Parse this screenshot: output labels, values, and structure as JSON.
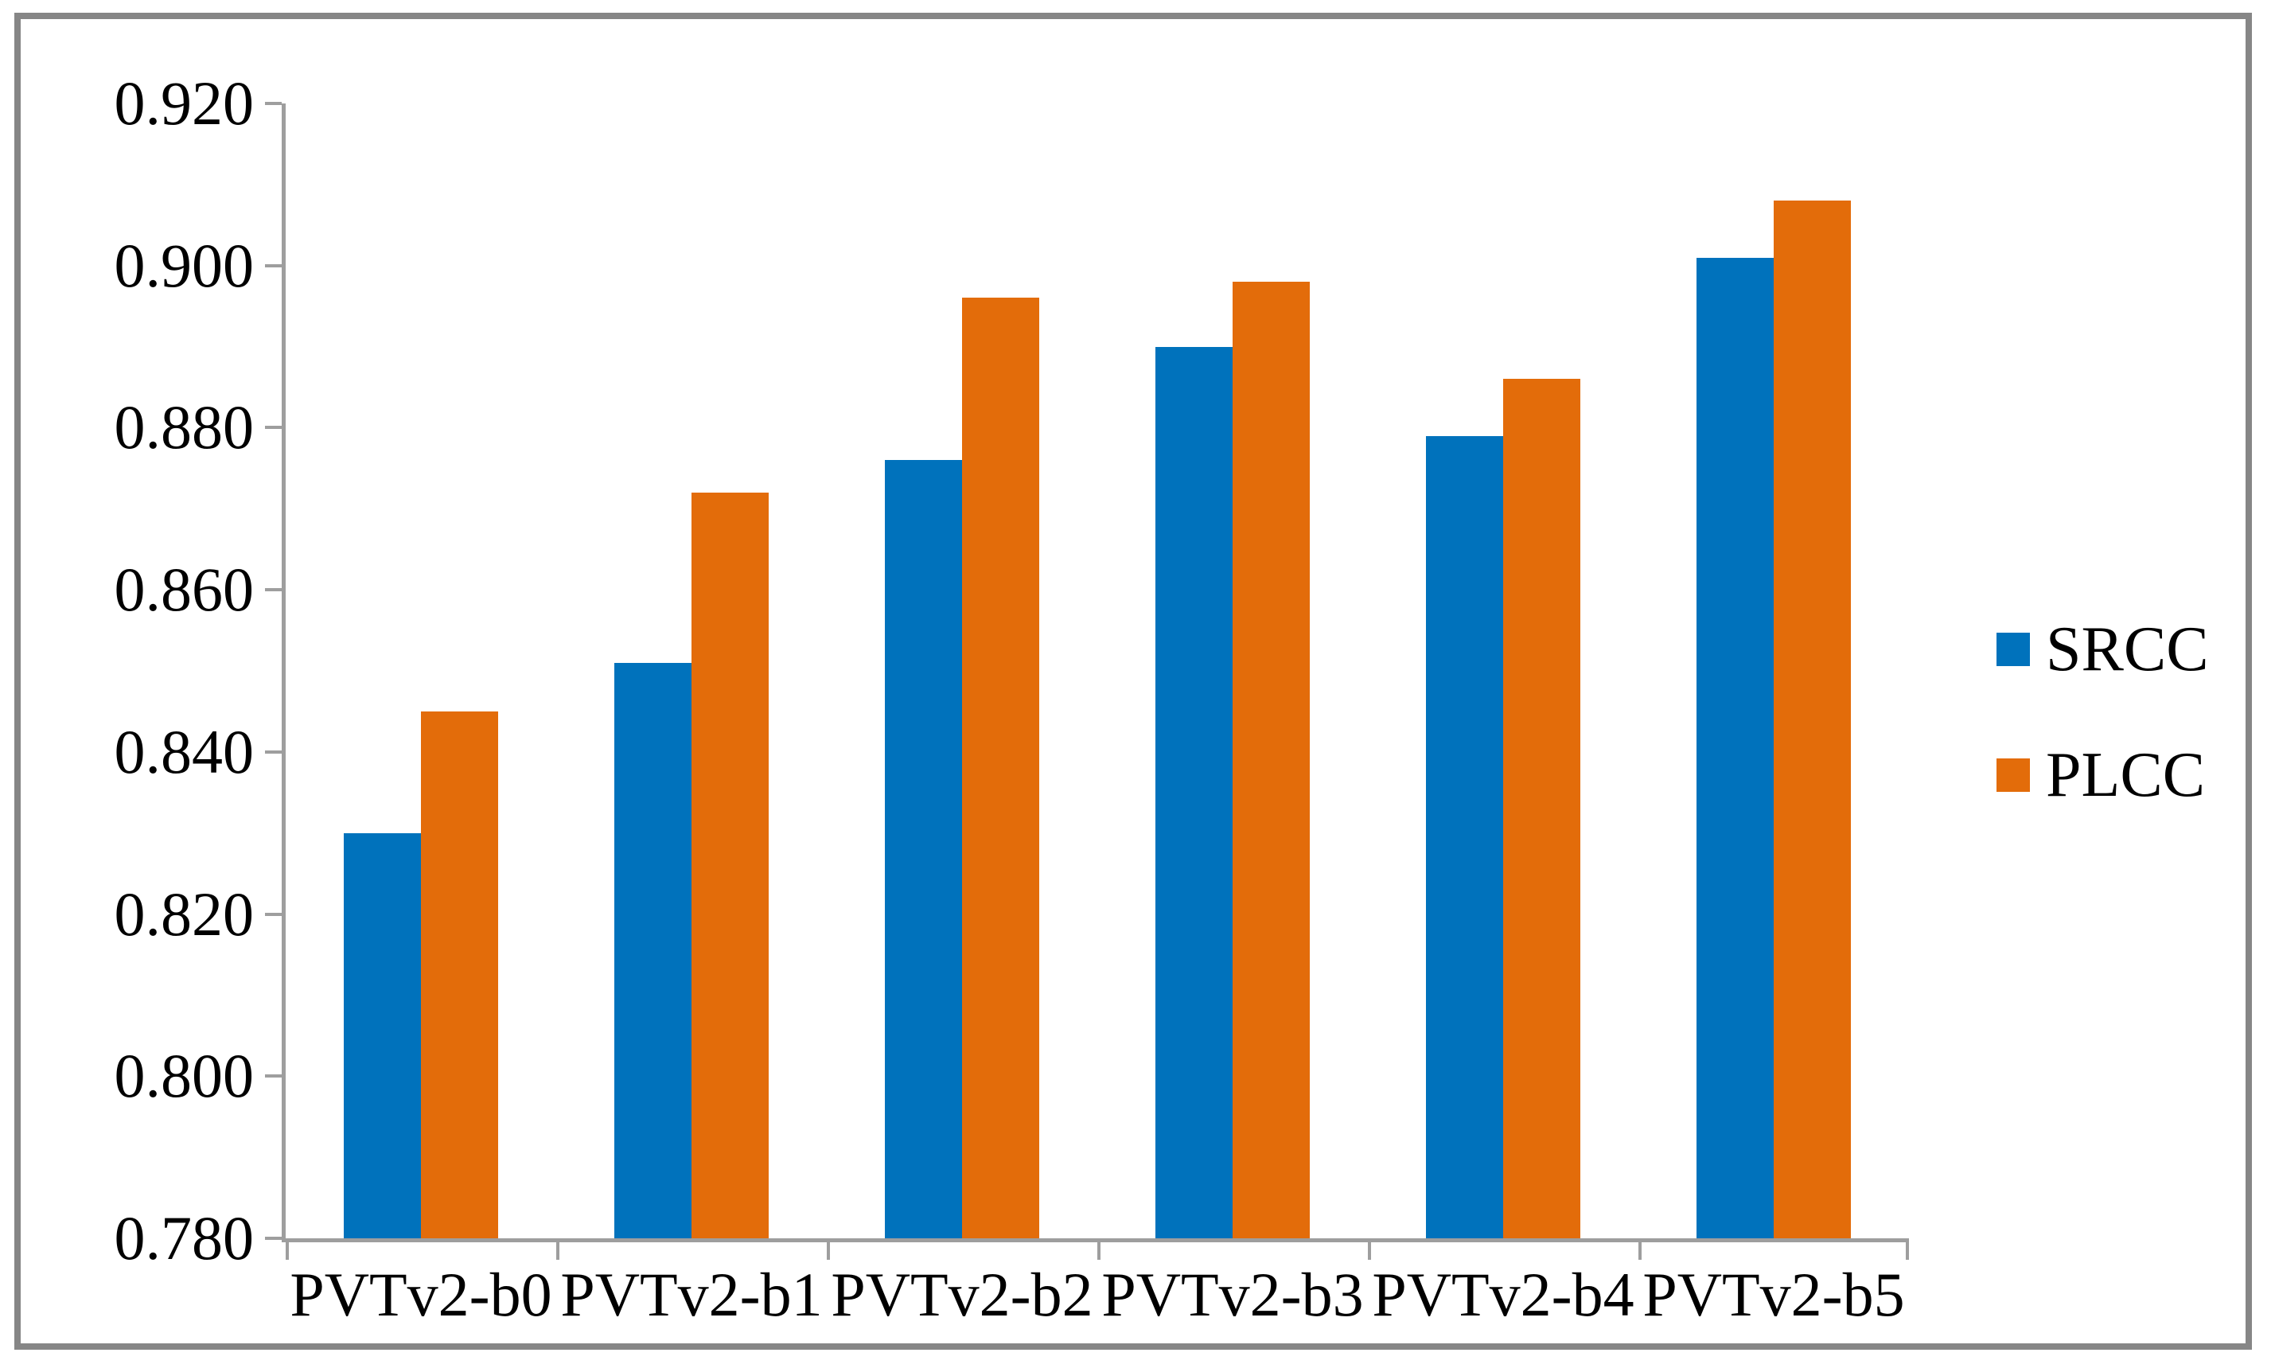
{
  "chart_data": {
    "type": "bar",
    "title": "",
    "xlabel": "",
    "ylabel": "",
    "categories": [
      "PVTv2-b0",
      "PVTv2-b1",
      "PVTv2-b2",
      "PVTv2-b3",
      "PVTv2-b4",
      "PVTv2-b5"
    ],
    "series": [
      {
        "name": "SRCC",
        "color": "#0072BC",
        "values": [
          0.83,
          0.851,
          0.876,
          0.89,
          0.879,
          0.901
        ]
      },
      {
        "name": "PLCC",
        "color": "#E36C0A",
        "values": [
          0.845,
          0.872,
          0.896,
          0.898,
          0.886,
          0.908
        ]
      }
    ],
    "ylim": [
      0.78,
      0.92
    ],
    "ytick_step": 0.02,
    "ytick_labels": [
      "0.920",
      "0.900",
      "0.880",
      "0.860",
      "0.840",
      "0.820",
      "0.800",
      "0.780"
    ],
    "grid": false,
    "legend_position": "right",
    "colors": {
      "axis": "#9E9E9E",
      "frame_border": "#868686",
      "text": "#000000",
      "background": "#FFFFFF"
    }
  },
  "legend": {
    "items": [
      {
        "label": "SRCC"
      },
      {
        "label": "PLCC"
      }
    ]
  }
}
